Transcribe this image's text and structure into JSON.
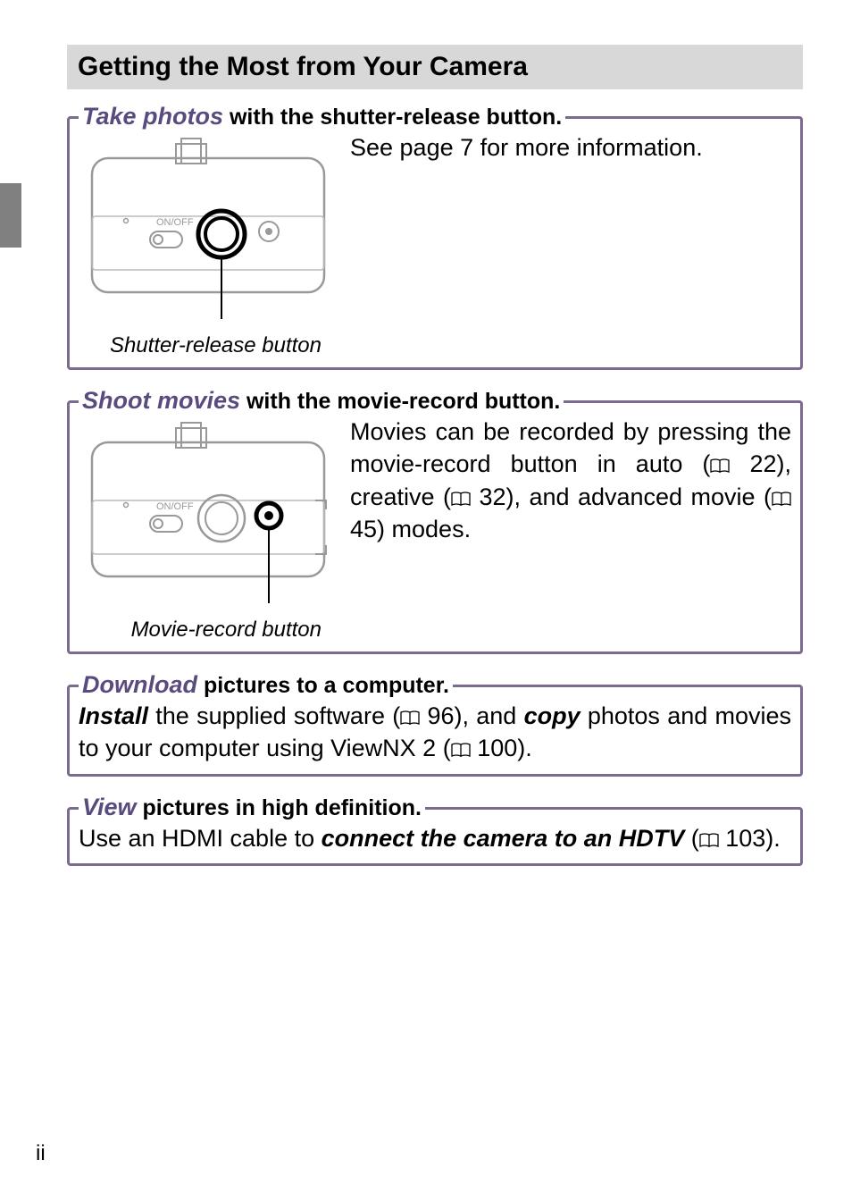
{
  "colors": {
    "section_border": "#7a6b8f",
    "accent_text": "#5a4b7f",
    "heading_bg": "#d8d8d8",
    "tab_gray": "#808080",
    "diagram_stroke": "#999999",
    "diagram_stroke_light": "#bbbbbb",
    "callout_line": "#000000"
  },
  "page_number": "ii",
  "main_heading": "Getting the Most from Your Camera",
  "sections": [
    {
      "title_accent": "Take photos",
      "title_rest": " with the shutter-release button.",
      "diagram_caption": "Shutter-release button",
      "body": "See page 7 for more information.",
      "has_diagram": true,
      "highlight_button": "shutter"
    },
    {
      "title_accent": "Shoot movies",
      "title_rest": " with the movie-record button.",
      "diagram_caption": "Movie-record button",
      "body_parts": [
        {
          "t": "Movies can be recorded by pressing the movie-record button in auto (",
          "c": ""
        },
        {
          "t": "📖",
          "c": "page-ref"
        },
        {
          "t": " 22), creative (",
          "c": ""
        },
        {
          "t": "📖",
          "c": "page-ref"
        },
        {
          "t": " 32), and advanced movie (",
          "c": ""
        },
        {
          "t": "📖",
          "c": "page-ref"
        },
        {
          "t": " 45) modes.",
          "c": ""
        }
      ],
      "has_diagram": true,
      "highlight_button": "movie"
    },
    {
      "title_accent": "Download",
      "title_rest": " pictures to a computer.",
      "body_parts": [
        {
          "t": "Install",
          "c": "install"
        },
        {
          "t": " the supplied software (",
          "c": ""
        },
        {
          "t": "📖",
          "c": "page-ref"
        },
        {
          "t": " 96), and ",
          "c": ""
        },
        {
          "t": "copy",
          "c": "copy"
        },
        {
          "t": " photos and movies to your computer using ViewNX 2 (",
          "c": ""
        },
        {
          "t": "📖",
          "c": "page-ref"
        },
        {
          "t": " 100).",
          "c": ""
        }
      ],
      "has_diagram": false
    },
    {
      "title_accent": "View",
      "title_rest": " pictures in high definition.",
      "body_parts": [
        {
          "t": "Use an HDMI cable to ",
          "c": ""
        },
        {
          "t": "connect the camera to an HDTV",
          "c": "connect"
        },
        {
          "t": " (",
          "c": ""
        },
        {
          "t": "📖",
          "c": "page-ref"
        },
        {
          "t": " 103).",
          "c": ""
        }
      ],
      "has_diagram": false
    }
  ]
}
